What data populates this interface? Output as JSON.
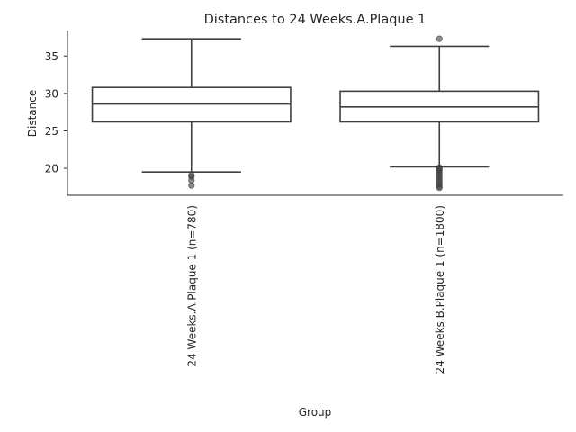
{
  "chart_data": {
    "type": "box",
    "title": "Distances to 24 Weeks.A.Plaque 1",
    "xlabel": "Group",
    "ylabel": "Distance",
    "ylim": [
      16.4,
      38.4
    ],
    "yticks": [
      20,
      25,
      30,
      35
    ],
    "grid": false,
    "categories": [
      "24 Weeks.A.Plaque 1 (n=780)",
      "24 Weeks.B.Plaque 1 (n=1800)"
    ],
    "boxes": [
      {
        "whisker_low": 19.5,
        "q1": 26.2,
        "median": 28.6,
        "q3": 30.8,
        "whisker_high": 37.3,
        "outliers": [
          19.1,
          18.9,
          18.4,
          17.7
        ]
      },
      {
        "whisker_low": 20.2,
        "q1": 26.2,
        "median": 28.2,
        "q3": 30.3,
        "whisker_high": 36.3,
        "outliers": [
          37.3,
          20.1,
          19.9,
          19.7,
          19.4,
          19.1,
          18.8,
          18.5,
          18.2,
          17.9,
          17.6,
          17.4
        ]
      }
    ]
  }
}
